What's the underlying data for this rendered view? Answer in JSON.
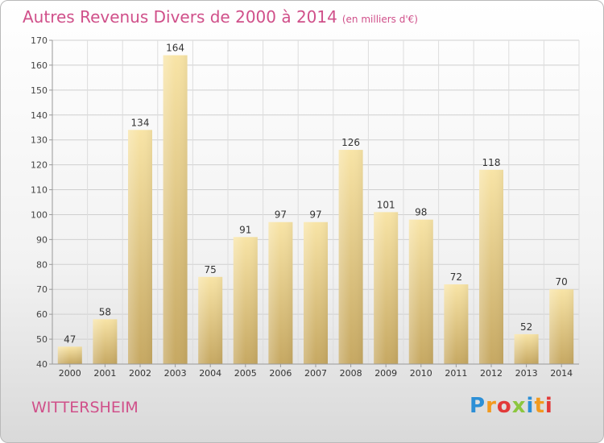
{
  "title": "Autres Revenus Divers de 2000 à 2014",
  "unit_note": "(en milliers d'€)",
  "location": "WITTERSHEIM",
  "logo_text": "Proxiti",
  "colors": {
    "bar_light": "#f7e2a3",
    "bar_dark": "#c4a660",
    "title": "#d0508a",
    "grid": "#cccccc"
  },
  "chart_data": {
    "type": "bar",
    "title": "Autres Revenus Divers de 2000 à 2014",
    "subtitle": "(en milliers d'€)",
    "categories": [
      "2000",
      "2001",
      "2002",
      "2003",
      "2004",
      "2005",
      "2006",
      "2007",
      "2008",
      "2009",
      "2010",
      "2011",
      "2012",
      "2013",
      "2014"
    ],
    "values": [
      47,
      58,
      134,
      164,
      75,
      91,
      97,
      97,
      126,
      101,
      98,
      72,
      118,
      52,
      70
    ],
    "ylim": [
      40,
      170
    ],
    "yticks": [
      40,
      50,
      60,
      70,
      80,
      90,
      100,
      110,
      120,
      130,
      140,
      150,
      160,
      170
    ],
    "grid": true,
    "data_labels": true
  }
}
